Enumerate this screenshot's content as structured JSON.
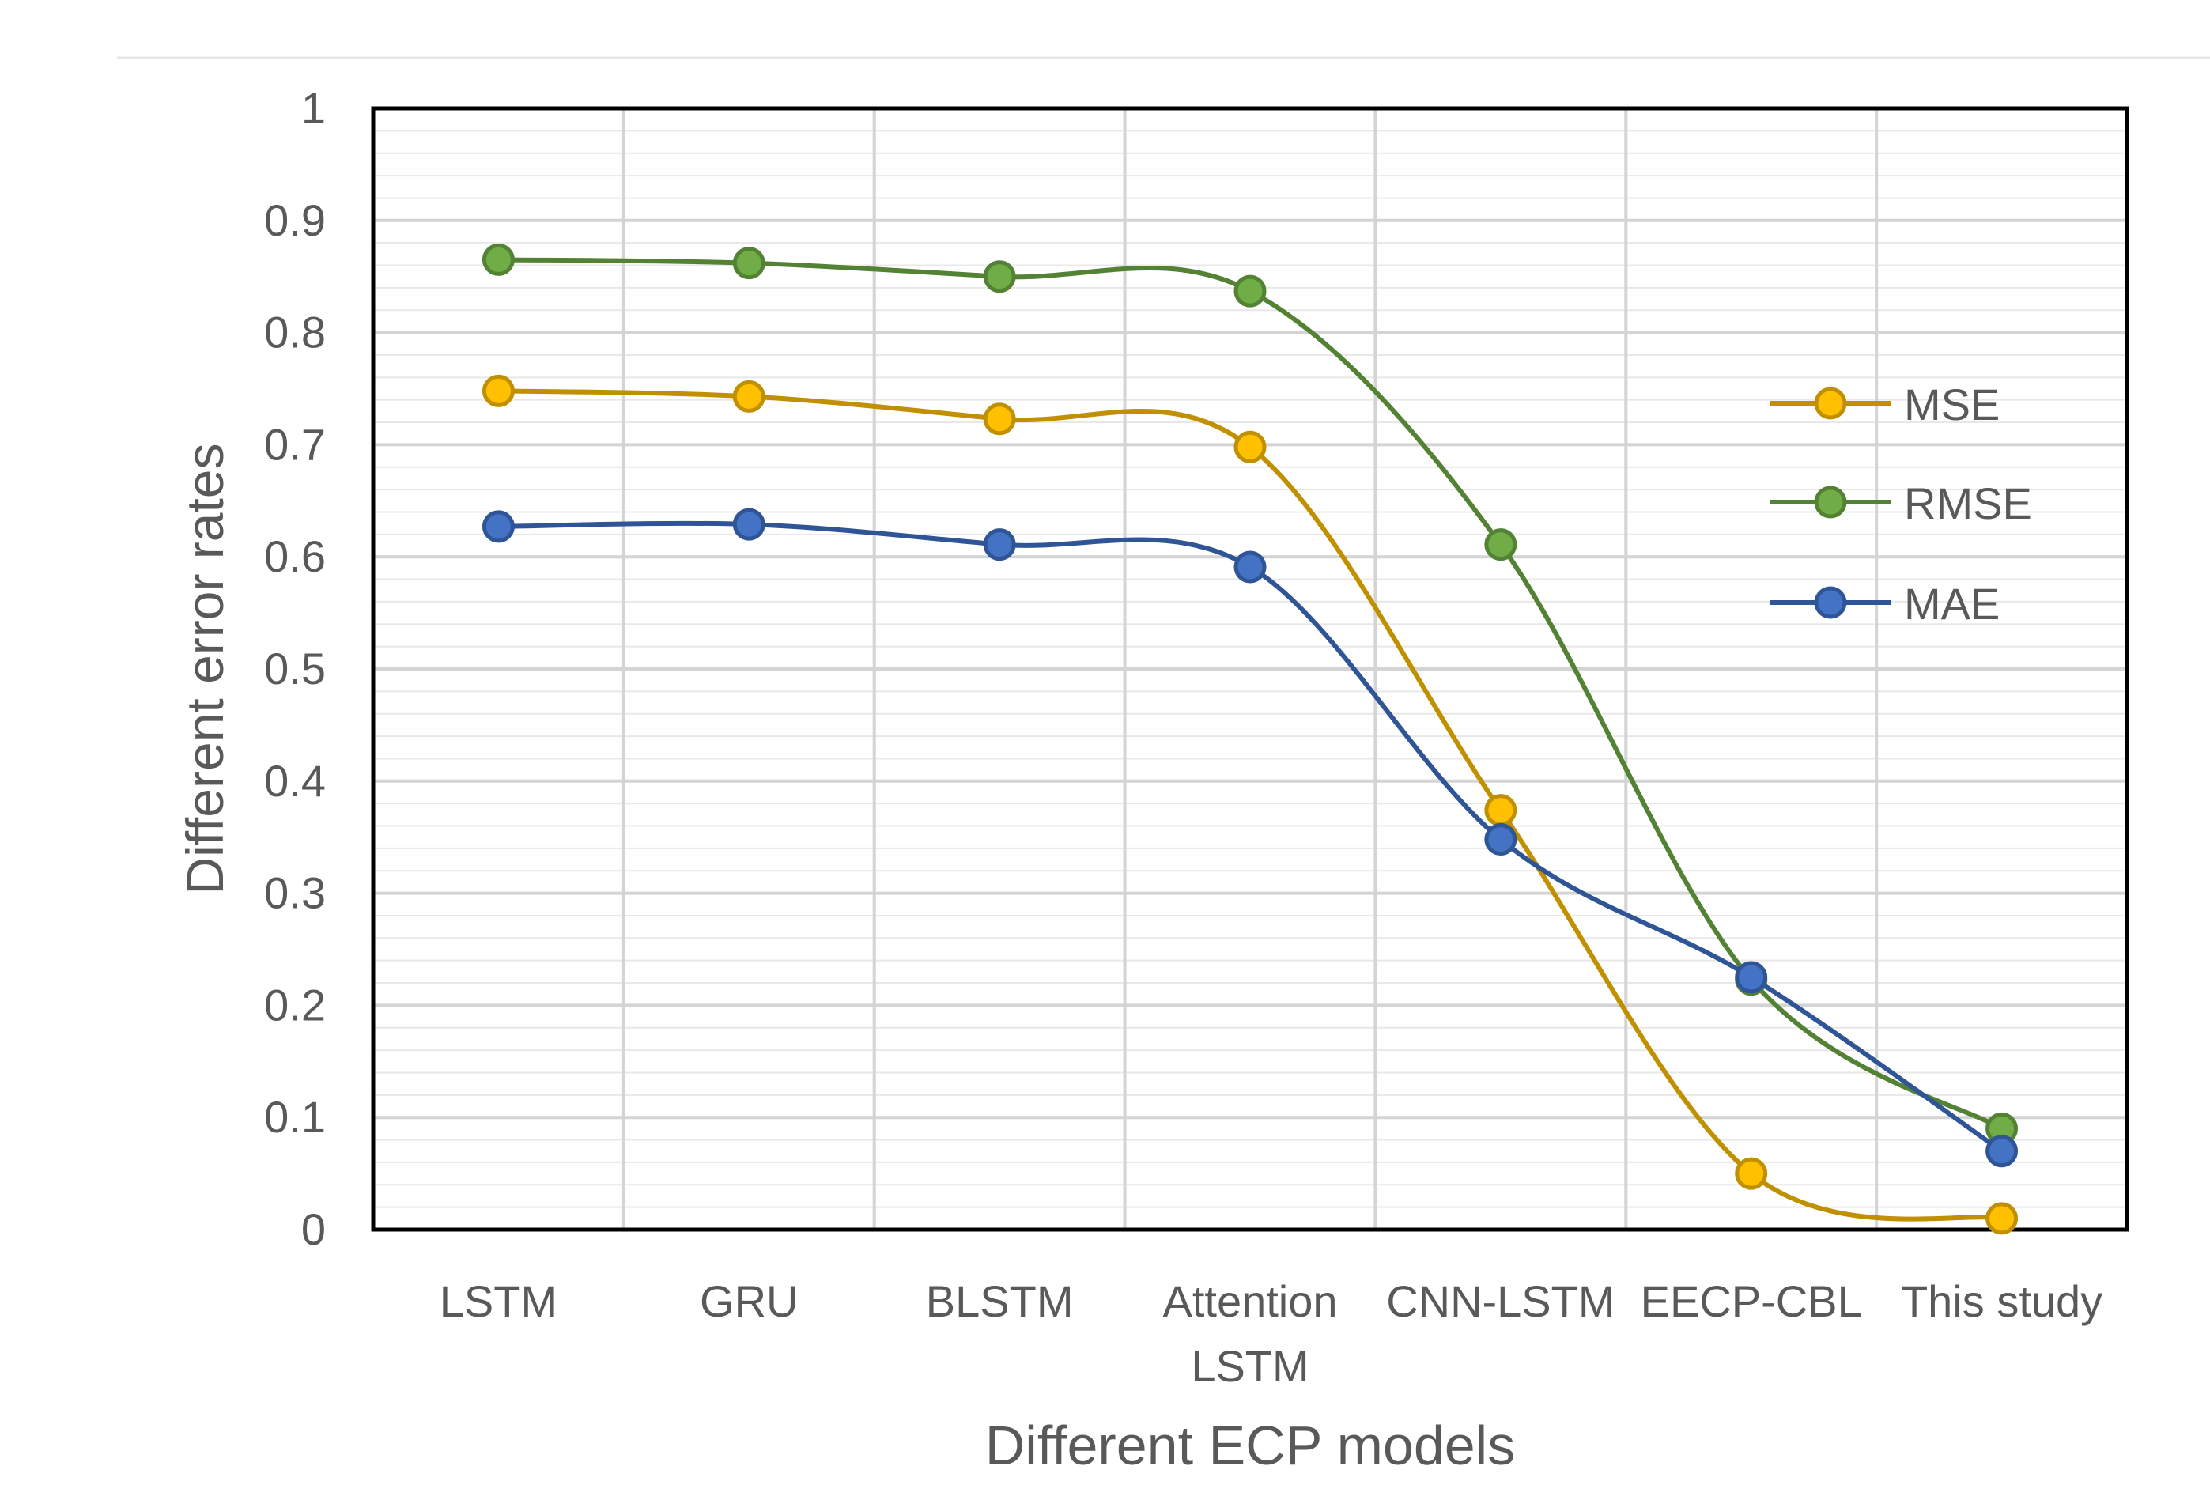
{
  "chart_data": {
    "type": "line",
    "title": "",
    "xlabel": "Different ECP models",
    "ylabel": "Different error rates",
    "ylim": [
      0,
      1
    ],
    "y_ticks": [
      "0",
      "0.1",
      "0.2",
      "0.3",
      "0.4",
      "0.5",
      "0.6",
      "0.7",
      "0.8",
      "0.9",
      "1"
    ],
    "grid": true,
    "smooth": true,
    "legend_position": "right",
    "categories": [
      [
        "LSTM"
      ],
      [
        "GRU"
      ],
      [
        "BLSTM"
      ],
      [
        "Attention",
        "LSTM"
      ],
      [
        "CNN-LSTM"
      ],
      [
        "EECP-CBL"
      ],
      [
        "This study"
      ]
    ],
    "series": [
      {
        "name": "MSE",
        "color": "#C09000",
        "fill": "#FFC000",
        "values": [
          0.748,
          0.743,
          0.723,
          0.698,
          0.374,
          0.05,
          0.01
        ]
      },
      {
        "name": "RMSE",
        "color": "#548235",
        "fill": "#70AD47",
        "values": [
          0.865,
          0.862,
          0.85,
          0.837,
          0.611,
          0.223,
          0.09
        ]
      },
      {
        "name": "MAE",
        "color": "#2F5597",
        "fill": "#4472C4",
        "values": [
          0.627,
          0.629,
          0.611,
          0.591,
          0.348,
          0.225,
          0.07
        ]
      }
    ]
  }
}
